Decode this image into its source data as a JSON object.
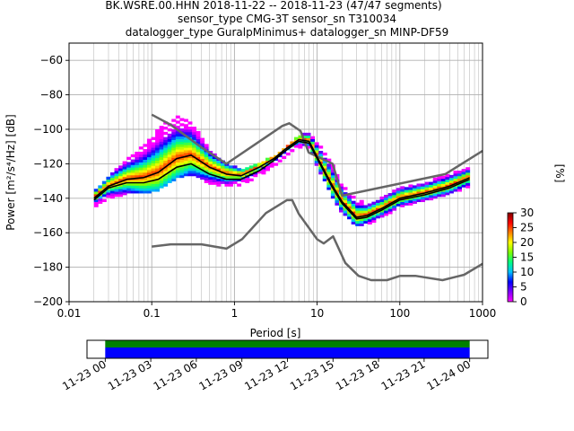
{
  "title_lines": [
    "BK.WSRE.00.HHN   2018-11-22 -- 2018-11-23  (47/47 segments)",
    "sensor_type CMG-3T sensor_sn T310034",
    "datalogger_type GuralpMinimus+ datalogger_sn MINP-DF59"
  ],
  "chart_data": [
    {
      "type": "heatmap",
      "subtype": "probabilistic-power-spectral-density",
      "xlabel": "Period [s]",
      "ylabel": "Power [m²/s⁴/Hz] [dB]",
      "xscale": "log",
      "xlim": [
        0.01,
        1000
      ],
      "ylim": [
        -200,
        -50
      ],
      "x_ticks": [
        0.01,
        0.1,
        1,
        10,
        100,
        1000
      ],
      "x_tick_labels": [
        "0.01",
        "0.1",
        "1",
        "10",
        "100",
        "1000"
      ],
      "y_ticks": [
        -200,
        -180,
        -160,
        -140,
        -120,
        -100,
        -80,
        -60
      ],
      "y_tick_labels": [
        "−200",
        "−180",
        "−160",
        "−140",
        "−120",
        "−100",
        "−80",
        "−60"
      ],
      "grid": true,
      "colorbar": {
        "label": "[%]",
        "min": 0,
        "max": 30,
        "ticks": [
          0,
          5,
          10,
          15,
          20,
          25,
          30
        ],
        "tick_labels": [
          "0",
          "5",
          "10",
          "15",
          "20",
          "25",
          "30"
        ]
      },
      "mode_curve": {
        "color": "#000000",
        "x": [
          0.02,
          0.03,
          0.05,
          0.08,
          0.12,
          0.2,
          0.3,
          0.5,
          0.8,
          1.2,
          2,
          3,
          4,
          6,
          8,
          10,
          15,
          20,
          30,
          40,
          60,
          100,
          200,
          400,
          700
        ],
        "y": [
          -140,
          -133,
          -129,
          -128,
          -125,
          -117,
          -115,
          -122,
          -126,
          -127,
          -122,
          -117,
          -112,
          -106,
          -107,
          -116,
          -132,
          -142,
          -151,
          -150,
          -146,
          -140,
          -137,
          -133,
          -128
        ]
      },
      "mean_curve": {
        "color": "#000000",
        "x": [
          0.02,
          0.03,
          0.05,
          0.08,
          0.12,
          0.2,
          0.3,
          0.5,
          0.8,
          1.2,
          2,
          3,
          4,
          6,
          8,
          10,
          15,
          20,
          30,
          40,
          60,
          100,
          200,
          400,
          700
        ],
        "y": [
          -141,
          -134,
          -131,
          -131,
          -129,
          -122,
          -120,
          -126,
          -129,
          -129,
          -124,
          -118,
          -113,
          -107,
          -108,
          -117,
          -133,
          -143,
          -152,
          -151,
          -147,
          -141,
          -138,
          -134,
          -129
        ]
      },
      "noise_models": [
        {
          "color": "#666666",
          "x": [
            0.1,
            0.17,
            0.4,
            0.8,
            3.8,
            4.6,
            6.3,
            7.9,
            15.4,
            20,
            354.8,
            1000
          ],
          "y": [
            -91.5,
            -97.4,
            -110.5,
            -120,
            -98,
            -96.5,
            -101,
            -113.5,
            -120,
            -138.5,
            -126,
            -112.5
          ]
        },
        {
          "color": "#666666",
          "x": [
            0.1,
            0.17,
            0.4,
            0.8,
            1.24,
            2.4,
            4.3,
            5,
            6,
            10,
            12,
            15.6,
            21.9,
            31.6,
            45,
            70,
            101,
            154,
            328,
            600,
            1000
          ],
          "y": [
            -168,
            -166.7,
            -166.7,
            -169.2,
            -163.7,
            -148.6,
            -141.1,
            -141.1,
            -149,
            -163.8,
            -166.2,
            -162.1,
            -177.5,
            -185,
            -187.5,
            -187.5,
            -185,
            -185,
            -187.5,
            -184.4,
            -178
          ]
        }
      ],
      "histogram_band": {
        "x": [
          0.02,
          0.03,
          0.05,
          0.08,
          0.12,
          0.2,
          0.3,
          0.5,
          0.8,
          1.2,
          2,
          3,
          4,
          6,
          8,
          10,
          15,
          20,
          30,
          40,
          60,
          100,
          200,
          400,
          700
        ],
        "upper": [
          -137,
          -128,
          -118,
          -110,
          -100,
          -92,
          -96,
          -113,
          -120,
          -124,
          -120,
          -116,
          -111,
          -104,
          -103,
          -108,
          -120,
          -133,
          -141,
          -144,
          -140,
          -134,
          -131,
          -126,
          -123
        ],
        "lower": [
          -145,
          -140,
          -137,
          -137,
          -135,
          -128,
          -126,
          -131,
          -133,
          -132,
          -127,
          -121,
          -116,
          -110,
          -111,
          -121,
          -138,
          -148,
          -156,
          -155,
          -151,
          -145,
          -141,
          -137,
          -133
        ]
      }
    },
    {
      "type": "bar",
      "subtype": "data-coverage-timeline",
      "x_tick_labels": [
        "11-23 00",
        "11-23 03",
        "11-23 06",
        "11-23 09",
        "11-23 12",
        "11-23 15",
        "11-23 18",
        "11-23 21",
        "11-24 00"
      ],
      "xlim_hours": [
        -1.2,
        25.2
      ],
      "series": [
        {
          "color": "#008000",
          "start_hour": 0,
          "end_hour": 24
        },
        {
          "color": "#0000ff",
          "start_hour": 0,
          "end_hour": 24
        }
      ]
    }
  ],
  "colors": {
    "grid": "#b0b0b0",
    "noise_model": "#666666",
    "colormap_stops": [
      "#ff00ff",
      "#8000ff",
      "#0000ff",
      "#00c0ff",
      "#00ff80",
      "#80ff00",
      "#ffff00",
      "#ff8000",
      "#ff0000",
      "#800000"
    ]
  }
}
